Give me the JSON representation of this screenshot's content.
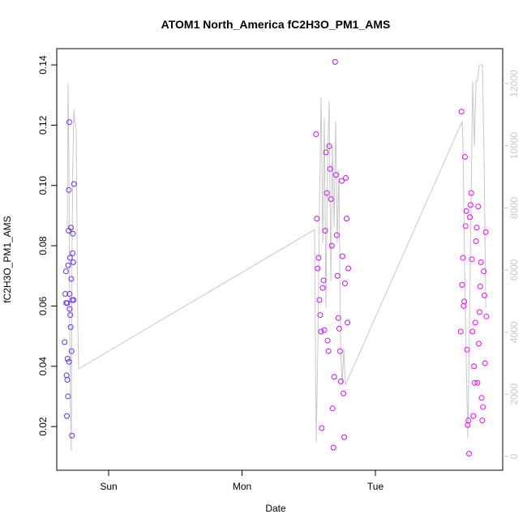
{
  "chart_data": {
    "type": "scatter",
    "title": "ATOM1 North_America fC2H3O_PM1_AMS",
    "xlabel": "Date",
    "ylabel": "fC2H3O_PM1_AMS",
    "xlim": [
      -0.389,
      2.954
    ],
    "xticks": [
      {
        "value": 0,
        "label": "Sun"
      },
      {
        "value": 1,
        "label": "Mon"
      },
      {
        "value": 2,
        "label": "Tue"
      }
    ],
    "ylim": [
      0.0055,
      0.1454
    ],
    "yticks": [
      0.02,
      0.04,
      0.06,
      0.08,
      {
        "value": 0.1,
        "label": "0.10"
      },
      0.12,
      0.14
    ],
    "y2lim": [
      -443,
      13122
    ],
    "y2ticks": [
      0,
      2000,
      4000,
      6000,
      8000,
      10000,
      12000
    ],
    "point_color_range": [
      "#6a2cff",
      "#ff00ff"
    ],
    "points": {
      "x": [
        -0.33,
        -0.325,
        -0.32,
        -0.318,
        -0.315,
        -0.313,
        -0.31,
        -0.308,
        -0.305,
        -0.303,
        -0.3,
        -0.298,
        -0.295,
        -0.293,
        -0.29,
        -0.288,
        -0.285,
        -0.283,
        -0.28,
        -0.278,
        -0.275,
        -0.273,
        -0.27,
        -0.268,
        -0.265,
        -0.263,
        -0.26,
        -0.297,
        -0.292,
        -0.31,
        1.555,
        1.561,
        1.567,
        1.574,
        1.58,
        1.586,
        1.592,
        1.598,
        1.605,
        1.611,
        1.617,
        1.623,
        1.629,
        1.636,
        1.642,
        1.648,
        1.654,
        1.66,
        1.667,
        1.673,
        1.679,
        1.685,
        1.691,
        1.698,
        1.704,
        1.71,
        1.716,
        1.722,
        1.729,
        1.735,
        1.741,
        1.747,
        1.753,
        1.76,
        1.766,
        1.772,
        1.778,
        1.784,
        1.791,
        1.797,
        2.64,
        2.645,
        2.65,
        2.656,
        2.661,
        2.666,
        2.671,
        2.676,
        2.682,
        2.687,
        2.692,
        2.697,
        2.702,
        2.708,
        2.713,
        2.718,
        2.723,
        2.728,
        2.734,
        2.739,
        2.744,
        2.749,
        2.754,
        2.76,
        2.765,
        2.77,
        2.775,
        2.78,
        2.786,
        2.791,
        2.796,
        2.801,
        2.806,
        2.812,
        2.817,
        2.822,
        2.827,
        2.832
      ],
      "values": [
        0.048,
        0.064,
        0.0715,
        0.061,
        0.037,
        0.0235,
        0.0355,
        0.0425,
        0.03,
        0.0735,
        0.085,
        0.0985,
        0.121,
        0.064,
        0.076,
        0.057,
        0.053,
        0.086,
        0.069,
        0.045,
        0.017,
        0.062,
        0.0775,
        0.084,
        0.0745,
        0.062,
        0.1005,
        0.0415,
        0.059,
        0.061,
        0.117,
        0.089,
        0.0725,
        0.076,
        0.062,
        0.057,
        0.0515,
        0.0195,
        0.066,
        0.0685,
        0.052,
        0.085,
        0.111,
        0.0975,
        0.0485,
        0.045,
        0.113,
        0.1055,
        0.0955,
        0.08,
        0.026,
        0.013,
        0.0365,
        0.141,
        0.1035,
        0.0835,
        0.07,
        0.056,
        0.0525,
        0.045,
        0.035,
        0.1015,
        0.0765,
        0.031,
        0.0165,
        0.0675,
        0.1025,
        0.089,
        0.0545,
        0.0725,
        0.0515,
        0.1245,
        0.067,
        0.076,
        0.06,
        0.0615,
        0.1095,
        0.0865,
        0.0915,
        0.0455,
        0.0205,
        0.022,
        0.011,
        0.0895,
        0.0935,
        0.0975,
        0.0755,
        0.0515,
        0.0235,
        0.04,
        0.0345,
        0.0545,
        0.0815,
        0.086,
        0.0345,
        0.093,
        0.0475,
        0.058,
        0.0665,
        0.0745,
        0.0295,
        0.022,
        0.0265,
        0.0715,
        0.0635,
        0.041,
        0.0845,
        0.0565
      ]
    },
    "line": {
      "axis": "y2",
      "color": "#c8c8c8",
      "x": [
        -0.31,
        -0.304,
        -0.298,
        -0.292,
        -0.286,
        -0.28,
        -0.274,
        -0.267,
        -0.261,
        -0.255,
        -0.243,
        -0.231,
        -0.225,
        1.544,
        1.556,
        1.568,
        1.581,
        1.593,
        1.605,
        1.617,
        1.629,
        1.641,
        1.653,
        1.666,
        1.678,
        1.69,
        1.702,
        1.714,
        1.726,
        1.739,
        1.751,
        1.763,
        1.775,
        2.65,
        2.657,
        2.669,
        2.681,
        2.693,
        2.705,
        2.717,
        2.729,
        2.742,
        2.754,
        2.766,
        2.778,
        2.79,
        2.802,
        2.815,
        2.827
      ],
      "values": [
        7380,
        12000,
        9470,
        4250,
        1640,
        180,
        6860,
        9730,
        11170,
        10780,
        10510,
        4250,
        2820,
        7300,
        470,
        3470,
        8170,
        11560,
        6860,
        10900,
        4770,
        9470,
        11430,
        5640,
        9990,
        7380,
        10780,
        6860,
        9210,
        3470,
        2300,
        3470,
        2300,
        10780,
        9990,
        6080,
        2950,
        600,
        4250,
        8170,
        12080,
        9990,
        12080,
        12080,
        12600,
        12600,
        12600,
        9470,
        4770
      ]
    }
  }
}
